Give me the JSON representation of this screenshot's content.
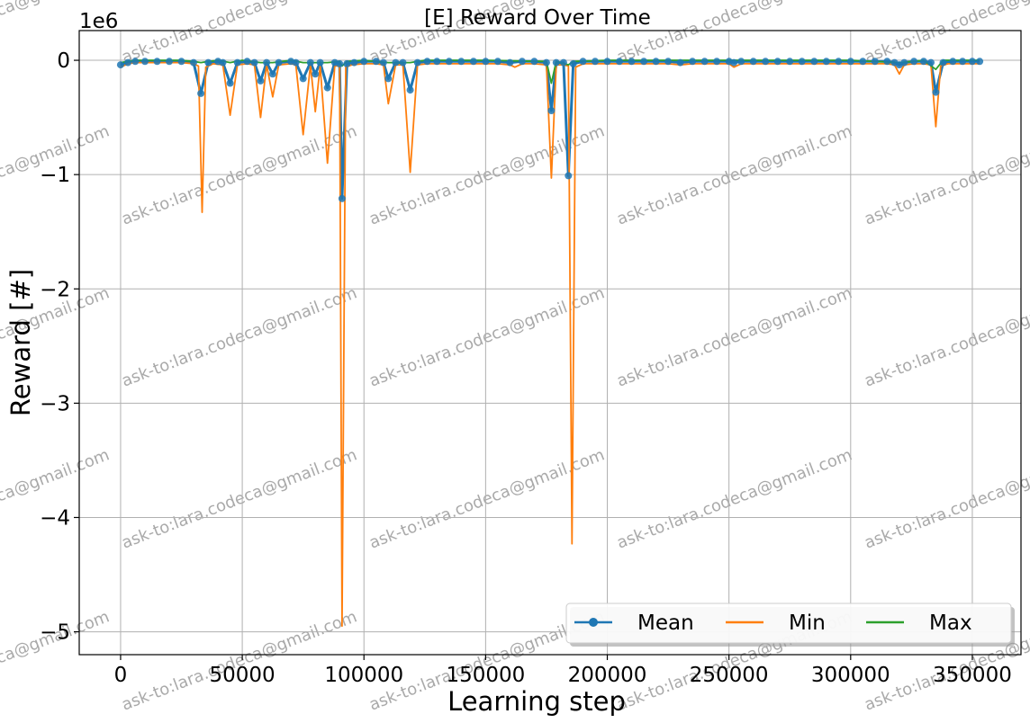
{
  "chart_data": {
    "type": "line",
    "title": "[E] Reward Over Time",
    "xlabel": "Learning step",
    "ylabel": "Reward [#]",
    "y_offset_text": "1e6",
    "xlim": [
      -17000,
      370000
    ],
    "ylim": [
      -5.2,
      0.26
    ],
    "x_ticks": [
      0,
      50000,
      100000,
      150000,
      200000,
      250000,
      300000,
      350000
    ],
    "x_tick_labels": [
      "0",
      "50000",
      "100000",
      "150000",
      "200000",
      "250000",
      "300000",
      "350000"
    ],
    "y_ticks": [
      0,
      -1,
      -2,
      -3,
      -4,
      -5
    ],
    "y_tick_labels": [
      "0",
      "−1",
      "−2",
      "−3",
      "−4",
      "−5"
    ],
    "grid": true,
    "legend": {
      "placement": "bottom-right",
      "columns": 3,
      "entries": [
        "Mean",
        "Min",
        "Max"
      ]
    },
    "watermark_text": "ask-to:lara.codeca@gmail.com",
    "colors": {
      "Mean": "#1f77b4",
      "Min": "#ff7f0e",
      "Max": "#2ca02c",
      "grid": "#b0b0b0"
    },
    "series": [
      {
        "name": "Mean",
        "marker": "circle",
        "x": [
          0,
          3000,
          6000,
          10000,
          15000,
          20000,
          25000,
          30000,
          33000,
          36000,
          40000,
          42000,
          45000,
          48000,
          52000,
          55000,
          57500,
          60000,
          62500,
          65000,
          70000,
          72000,
          75000,
          78000,
          80000,
          82000,
          85000,
          88000,
          90000,
          91000,
          93000,
          96000,
          100000,
          105000,
          108000,
          110000,
          113000,
          116000,
          119000,
          122000,
          126000,
          130000,
          135000,
          140000,
          145000,
          150000,
          155000,
          160000,
          165000,
          170000,
          175000,
          177000,
          179000,
          182000,
          184000,
          186000,
          190000,
          195000,
          200000,
          205000,
          210000,
          215000,
          220000,
          225000,
          230000,
          235000,
          240000,
          245000,
          250000,
          252000,
          255000,
          260000,
          265000,
          270000,
          275000,
          280000,
          285000,
          290000,
          295000,
          300000,
          305000,
          310000,
          315000,
          318000,
          320000,
          322000,
          326000,
          330000,
          333000,
          335000,
          338000,
          342000,
          346000,
          350000,
          353000
        ],
        "y": [
          -0.04,
          -0.02,
          -0.01,
          -0.01,
          -0.01,
          -0.01,
          -0.01,
          -0.02,
          -0.29,
          -0.02,
          -0.01,
          -0.02,
          -0.2,
          -0.02,
          -0.01,
          -0.02,
          -0.18,
          -0.02,
          -0.12,
          -0.02,
          -0.01,
          -0.02,
          -0.16,
          -0.02,
          -0.12,
          -0.02,
          -0.24,
          -0.02,
          -0.03,
          -1.21,
          -0.03,
          -0.02,
          -0.01,
          -0.01,
          -0.02,
          -0.16,
          -0.02,
          -0.02,
          -0.26,
          -0.02,
          -0.01,
          -0.01,
          -0.01,
          -0.01,
          -0.01,
          -0.01,
          -0.01,
          -0.02,
          -0.01,
          -0.01,
          -0.02,
          -0.44,
          -0.02,
          -0.02,
          -1.01,
          -0.03,
          -0.01,
          -0.01,
          -0.01,
          -0.01,
          -0.01,
          -0.01,
          -0.01,
          -0.01,
          -0.02,
          -0.01,
          -0.01,
          -0.01,
          -0.01,
          -0.02,
          -0.01,
          -0.01,
          -0.01,
          -0.01,
          -0.01,
          -0.01,
          -0.01,
          -0.01,
          -0.01,
          -0.01,
          -0.01,
          -0.01,
          -0.01,
          -0.02,
          -0.04,
          -0.02,
          -0.01,
          -0.01,
          -0.02,
          -0.28,
          -0.02,
          -0.01,
          -0.01,
          -0.01,
          -0.01
        ]
      },
      {
        "name": "Min",
        "x": [
          0,
          3000,
          6000,
          10000,
          15000,
          20000,
          25000,
          30000,
          32000,
          33500,
          35000,
          38000,
          42000,
          45000,
          48000,
          52000,
          55000,
          57500,
          60000,
          62500,
          65000,
          70000,
          72000,
          75000,
          78000,
          80000,
          82000,
          85000,
          88000,
          90000,
          91000,
          92500,
          95000,
          100000,
          105000,
          108000,
          110000,
          113000,
          116000,
          119000,
          122000,
          126000,
          130000,
          135000,
          140000,
          145000,
          150000,
          155000,
          160000,
          162000,
          165000,
          170000,
          175000,
          177000,
          179000,
          182000,
          184000,
          185500,
          187000,
          190000,
          195000,
          200000,
          205000,
          210000,
          215000,
          220000,
          225000,
          230000,
          235000,
          240000,
          245000,
          250000,
          252000,
          255000,
          260000,
          265000,
          270000,
          275000,
          280000,
          285000,
          290000,
          295000,
          300000,
          305000,
          310000,
          315000,
          318000,
          320000,
          322000,
          326000,
          330000,
          333000,
          335000,
          337000,
          340000,
          345000,
          350000,
          353000
        ],
        "y": [
          -0.06,
          -0.03,
          -0.02,
          -0.02,
          -0.02,
          -0.02,
          -0.02,
          -0.03,
          -0.05,
          -1.33,
          -0.06,
          -0.03,
          -0.04,
          -0.48,
          -0.04,
          -0.03,
          -0.04,
          -0.5,
          -0.04,
          -0.32,
          -0.04,
          -0.03,
          -0.04,
          -0.65,
          -0.04,
          -0.45,
          -0.05,
          -0.9,
          -0.05,
          -0.05,
          -4.95,
          -0.06,
          -0.04,
          -0.03,
          -0.03,
          -0.04,
          -0.38,
          -0.04,
          -0.04,
          -0.98,
          -0.04,
          -0.03,
          -0.03,
          -0.03,
          -0.03,
          -0.03,
          -0.03,
          -0.03,
          -0.04,
          -0.06,
          -0.03,
          -0.03,
          -0.04,
          -1.03,
          -0.04,
          -0.04,
          -0.05,
          -4.23,
          -0.06,
          -0.03,
          -0.03,
          -0.03,
          -0.03,
          -0.03,
          -0.03,
          -0.03,
          -0.03,
          -0.04,
          -0.03,
          -0.03,
          -0.03,
          -0.03,
          -0.06,
          -0.03,
          -0.03,
          -0.03,
          -0.03,
          -0.03,
          -0.03,
          -0.03,
          -0.03,
          -0.03,
          -0.03,
          -0.03,
          -0.03,
          -0.03,
          -0.04,
          -0.12,
          -0.04,
          -0.03,
          -0.03,
          -0.04,
          -0.58,
          -0.05,
          -0.03,
          -0.03,
          -0.03,
          -0.03
        ]
      },
      {
        "name": "Max",
        "x": [
          0,
          3000,
          6000,
          10000,
          15000,
          20000,
          25000,
          30000,
          33000,
          36000,
          40000,
          45000,
          50000,
          57500,
          62500,
          70000,
          75000,
          80000,
          85000,
          90000,
          91000,
          93000,
          100000,
          110000,
          119000,
          125000,
          150000,
          175000,
          177000,
          179000,
          184000,
          186000,
          200000,
          225000,
          250000,
          275000,
          300000,
          320000,
          330000,
          335000,
          338000,
          345000,
          353000
        ],
        "y": [
          -0.02,
          -0.01,
          0.0,
          0.0,
          0.0,
          0.0,
          0.0,
          -0.01,
          -0.02,
          -0.01,
          0.0,
          -0.02,
          0.0,
          -0.02,
          -0.02,
          0.0,
          -0.02,
          -0.02,
          -0.02,
          -0.01,
          -0.05,
          -0.01,
          0.0,
          -0.02,
          -0.02,
          0.0,
          0.0,
          -0.01,
          -0.2,
          -0.01,
          -0.04,
          -0.01,
          0.0,
          0.0,
          0.0,
          0.0,
          0.0,
          -0.02,
          0.0,
          -0.08,
          0.0,
          0.0,
          0.0
        ]
      }
    ]
  }
}
